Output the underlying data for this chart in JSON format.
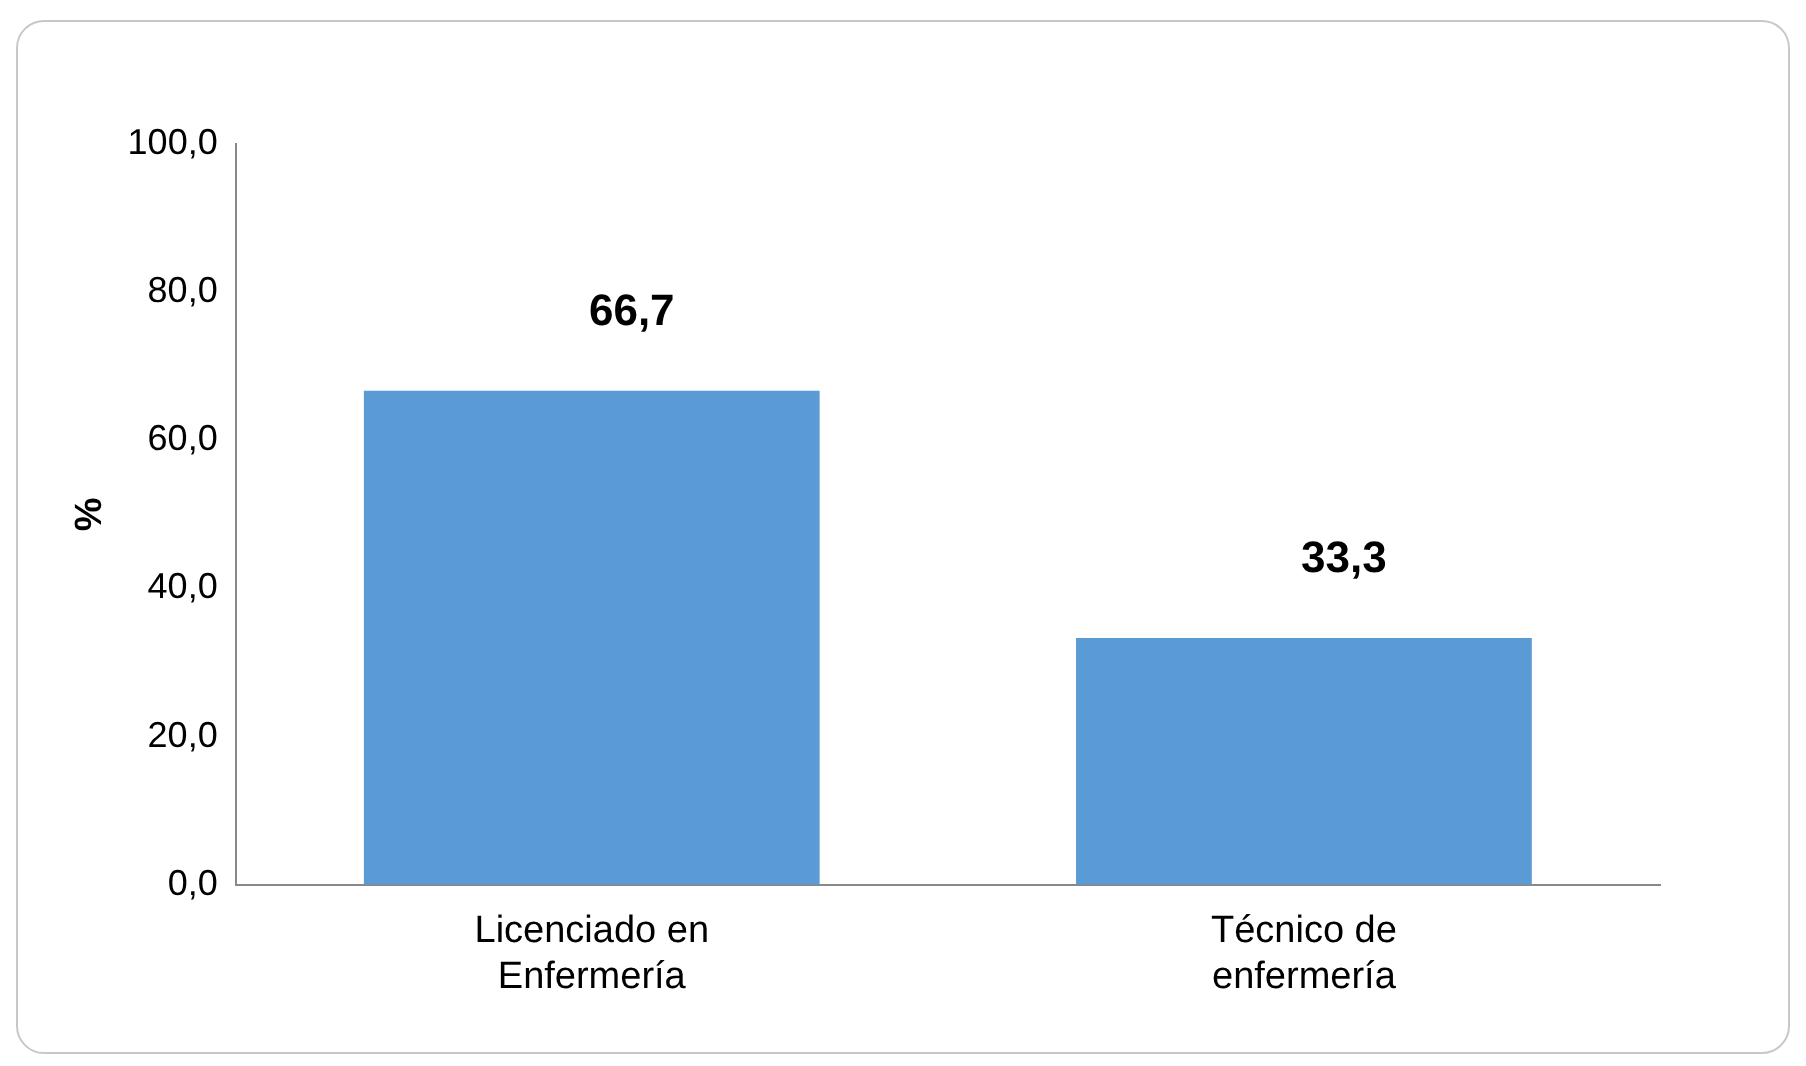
{
  "chart_data": {
    "type": "bar",
    "ylabel": "%",
    "categories": [
      "Licenciado en Enfermería",
      "Técnico de enfermería"
    ],
    "values": [
      66.7,
      33.3
    ],
    "color": "#5b9bd5",
    "value_labels": [
      "66,7",
      "33,3"
    ],
    "ylim": [
      0,
      100
    ],
    "yticks": [
      {
        "value": 0,
        "label": "0,0"
      },
      {
        "value": 20,
        "label": "20,0"
      },
      {
        "value": 40,
        "label": "40,0"
      },
      {
        "value": 60,
        "label": "60,0"
      },
      {
        "value": 80,
        "label": "80,0"
      },
      {
        "value": 100,
        "label": "100,0"
      }
    ],
    "grid": false,
    "legend": false
  }
}
